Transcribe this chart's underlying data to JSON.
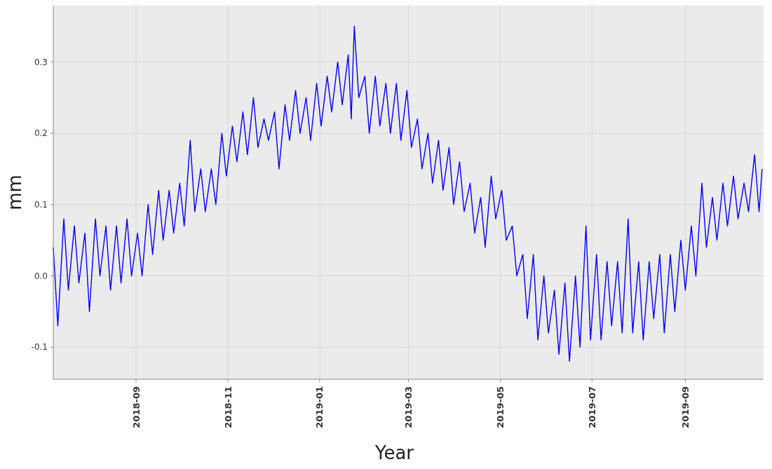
{
  "chart_data": {
    "type": "line",
    "xlabel": "Year",
    "ylabel": "mm",
    "xlim": [
      "2018-07-08",
      "2019-10-23"
    ],
    "xticks": [
      {
        "value": "2018-09-01",
        "label": "2018-09"
      },
      {
        "value": "2018-11-01",
        "label": "2018-11"
      },
      {
        "value": "2019-01-01",
        "label": "2019-01"
      },
      {
        "value": "2019-03-01",
        "label": "2019-03"
      },
      {
        "value": "2019-05-01",
        "label": "2019-05"
      },
      {
        "value": "2019-07-01",
        "label": "2019-07"
      },
      {
        "value": "2019-09-01",
        "label": "2019-09"
      }
    ],
    "ylim": [
      -0.145,
      0.379
    ],
    "yticks": [
      -0.1,
      {
        "value": 0,
        "label": "0.0"
      },
      0.1,
      0.2,
      0.3
    ],
    "grid": true,
    "marker": "none",
    "line_style": "solid",
    "x": [
      "2018-07-08",
      "2018-07-11",
      "2018-07-15",
      "2018-07-18",
      "2018-07-22",
      "2018-07-25",
      "2018-07-29",
      "2018-08-01",
      "2018-08-05",
      "2018-08-08",
      "2018-08-12",
      "2018-08-15",
      "2018-08-19",
      "2018-08-22",
      "2018-08-26",
      "2018-08-29",
      "2018-09-02",
      "2018-09-05",
      "2018-09-09",
      "2018-09-12",
      "2018-09-16",
      "2018-09-19",
      "2018-09-23",
      "2018-09-26",
      "2018-09-30",
      "2018-10-03",
      "2018-10-07",
      "2018-10-10",
      "2018-10-14",
      "2018-10-17",
      "2018-10-21",
      "2018-10-24",
      "2018-10-28",
      "2018-10-31",
      "2018-11-04",
      "2018-11-07",
      "2018-11-11",
      "2018-11-14",
      "2018-11-18",
      "2018-11-21",
      "2018-11-25",
      "2018-11-28",
      "2018-12-02",
      "2018-12-05",
      "2018-12-09",
      "2018-12-12",
      "2018-12-16",
      "2018-12-19",
      "2018-12-23",
      "2018-12-26",
      "2018-12-30",
      "2019-01-02",
      "2019-01-06",
      "2019-01-09",
      "2019-01-13",
      "2019-01-16",
      "2019-01-20",
      "2019-01-22",
      "2019-01-24",
      "2019-01-27",
      "2019-01-31",
      "2019-02-03",
      "2019-02-07",
      "2019-02-10",
      "2019-02-14",
      "2019-02-17",
      "2019-02-21",
      "2019-02-24",
      "2019-02-28",
      "2019-03-03",
      "2019-03-07",
      "2019-03-10",
      "2019-03-14",
      "2019-03-17",
      "2019-03-21",
      "2019-03-24",
      "2019-03-28",
      "2019-03-31",
      "2019-04-04",
      "2019-04-07",
      "2019-04-11",
      "2019-04-14",
      "2019-04-18",
      "2019-04-21",
      "2019-04-25",
      "2019-04-28",
      "2019-05-02",
      "2019-05-05",
      "2019-05-09",
      "2019-05-12",
      "2019-05-16",
      "2019-05-19",
      "2019-05-23",
      "2019-05-26",
      "2019-05-30",
      "2019-06-02",
      "2019-06-06",
      "2019-06-09",
      "2019-06-13",
      "2019-06-16",
      "2019-06-20",
      "2019-06-23",
      "2019-06-27",
      "2019-06-30",
      "2019-07-04",
      "2019-07-07",
      "2019-07-11",
      "2019-07-14",
      "2019-07-18",
      "2019-07-21",
      "2019-07-25",
      "2019-07-28",
      "2019-08-01",
      "2019-08-04",
      "2019-08-08",
      "2019-08-11",
      "2019-08-15",
      "2019-08-18",
      "2019-08-22",
      "2019-08-25",
      "2019-08-29",
      "2019-09-01",
      "2019-09-05",
      "2019-09-08",
      "2019-09-12",
      "2019-09-15",
      "2019-09-19",
      "2019-09-22",
      "2019-09-26",
      "2019-09-29",
      "2019-10-03",
      "2019-10-06",
      "2019-10-10",
      "2019-10-13",
      "2019-10-17",
      "2019-10-20",
      "2019-10-22"
    ],
    "series": [
      {
        "color": "#0000ff",
        "values": [
          0.04,
          -0.07,
          0.08,
          -0.02,
          0.07,
          -0.01,
          0.06,
          -0.05,
          0.08,
          0,
          0.07,
          -0.02,
          0.07,
          -0.01,
          0.08,
          0,
          0.06,
          0,
          0.1,
          0.03,
          0.12,
          0.05,
          0.12,
          0.06,
          0.13,
          0.07,
          0.19,
          0.09,
          0.15,
          0.09,
          0.15,
          0.1,
          0.2,
          0.14,
          0.21,
          0.16,
          0.23,
          0.17,
          0.25,
          0.18,
          0.22,
          0.19,
          0.23,
          0.15,
          0.24,
          0.19,
          0.26,
          0.2,
          0.25,
          0.19,
          0.27,
          0.21,
          0.28,
          0.23,
          0.3,
          0.24,
          0.31,
          0.22,
          0.35,
          0.25,
          0.28,
          0.2,
          0.28,
          0.21,
          0.27,
          0.2,
          0.27,
          0.19,
          0.26,
          0.18,
          0.22,
          0.15,
          0.2,
          0.13,
          0.19,
          0.12,
          0.18,
          0.1,
          0.16,
          0.09,
          0.13,
          0.06,
          0.11,
          0.04,
          0.14,
          0.08,
          0.12,
          0.05,
          0.07,
          0,
          0.03,
          -0.06,
          0.03,
          -0.09,
          0,
          -0.08,
          -0.02,
          -0.11,
          -0.01,
          -0.12,
          0,
          -0.1,
          0.07,
          -0.09,
          0.03,
          -0.09,
          0.02,
          -0.07,
          0.02,
          -0.08,
          0.08,
          -0.08,
          0.02,
          -0.09,
          0.02,
          -0.06,
          0.03,
          -0.08,
          0.03,
          -0.05,
          0.05,
          -0.02,
          0.07,
          0,
          0.13,
          0.04,
          0.11,
          0.05,
          0.13,
          0.07,
          0.14,
          0.08,
          0.13,
          0.09,
          0.17,
          0.09,
          0.15
        ]
      }
    ]
  }
}
